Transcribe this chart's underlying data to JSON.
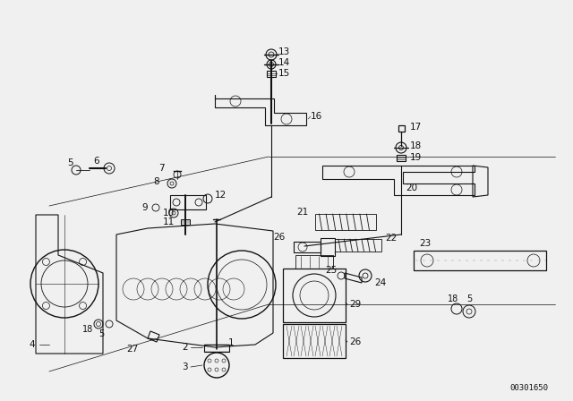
{
  "bg_color": "#f0f0f0",
  "fg_color": "#111111",
  "diagram_id": "00301650",
  "figsize": [
    6.4,
    4.48
  ],
  "dpi": 100
}
